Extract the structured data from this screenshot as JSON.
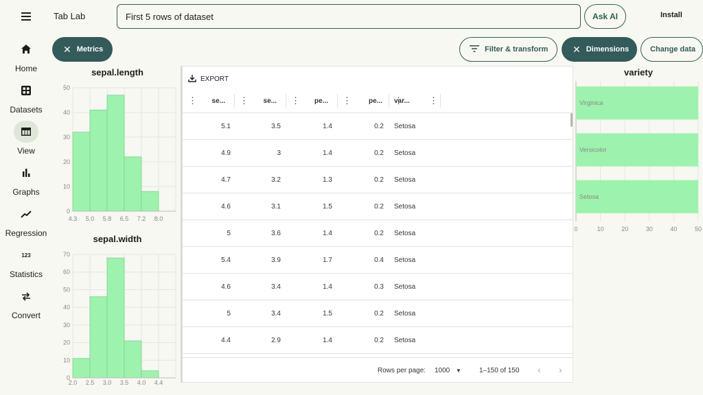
{
  "app": {
    "title": "Tab Lab",
    "menu_icon": "hamburger-menu-icon"
  },
  "search": {
    "value": "First 5 rows of dataset",
    "placeholder": ""
  },
  "header": {
    "ask_ai_label": "Ask AI",
    "install_label": "Install"
  },
  "rail": {
    "items": [
      {
        "label": "Home",
        "icon": "home-icon",
        "active": false
      },
      {
        "label": "Datasets",
        "icon": "grid-icon",
        "active": false
      },
      {
        "label": "View",
        "icon": "table-icon",
        "active": true
      },
      {
        "label": "Graphs",
        "icon": "bar-chart-icon",
        "active": false
      },
      {
        "label": "Regression",
        "icon": "trend-line-icon",
        "active": false
      },
      {
        "label": "Statistics",
        "icon": "numbers-icon",
        "active": false
      },
      {
        "label": "Convert",
        "icon": "swap-arrows-icon",
        "active": false
      }
    ]
  },
  "chips": {
    "metrics_label": "Metrics",
    "filter_label": "Filter & transform",
    "dimensions_label": "Dimensions",
    "change_data_label": "Change data"
  },
  "colors": {
    "accent": "#325b5a",
    "bar_fill": "#9df3ad",
    "bar_stroke": "#7ccf8e",
    "background": "#f7f8f1"
  },
  "table": {
    "export_label": "EXPORT",
    "columns": [
      "se...",
      "se...",
      "pe...",
      "pe...",
      "var..."
    ],
    "rows": [
      [
        "5.1",
        "3.5",
        "1.4",
        "0.2",
        "Setosa"
      ],
      [
        "4.9",
        "3",
        "1.4",
        "0.2",
        "Setosa"
      ],
      [
        "4.7",
        "3.2",
        "1.3",
        "0.2",
        "Setosa"
      ],
      [
        "4.6",
        "3.1",
        "1.5",
        "0.2",
        "Setosa"
      ],
      [
        "5",
        "3.6",
        "1.4",
        "0.2",
        "Setosa"
      ],
      [
        "5.4",
        "3.9",
        "1.7",
        "0.4",
        "Setosa"
      ],
      [
        "4.6",
        "3.4",
        "1.4",
        "0.3",
        "Setosa"
      ],
      [
        "5",
        "3.4",
        "1.5",
        "0.2",
        "Setosa"
      ],
      [
        "4.4",
        "2.9",
        "1.4",
        "0.2",
        "Setosa"
      ]
    ],
    "footer": {
      "rows_per_page_label": "Rows per page:",
      "rows_per_page_value": "1000",
      "range_label": "1–150 of 150"
    }
  },
  "chart_data": [
    {
      "type": "bar",
      "title": "sepal.length",
      "categories": [
        "4.3",
        "5.0",
        "5.8",
        "6.5",
        "7.2",
        "8.0"
      ],
      "bin_edges": [
        4.3,
        4.9,
        5.5,
        6.1,
        6.7,
        7.3,
        7.9
      ],
      "values": [
        32,
        41,
        47,
        22,
        8,
        0
      ],
      "ylim": [
        0,
        50
      ],
      "yticks": [
        0,
        10,
        20,
        30,
        40,
        50
      ],
      "grid": true
    },
    {
      "type": "bar",
      "title": "sepal.width",
      "categories": [
        "2.0",
        "2.5",
        "3.0",
        "3.5",
        "4.0",
        "4.4"
      ],
      "values": [
        11,
        46,
        68,
        21,
        4,
        0
      ],
      "ylim": [
        0,
        70
      ],
      "yticks": [
        0,
        10,
        20,
        30,
        40,
        50,
        60,
        70
      ],
      "grid": true
    },
    {
      "type": "bar",
      "orientation": "horizontal",
      "title": "variety",
      "categories": [
        "Virginica",
        "Versicolor",
        "Setosa"
      ],
      "values": [
        50,
        50,
        50
      ],
      "xlim": [
        0,
        50
      ],
      "xticks": [
        0,
        10,
        20,
        30,
        40,
        50
      ],
      "grid": true
    }
  ]
}
